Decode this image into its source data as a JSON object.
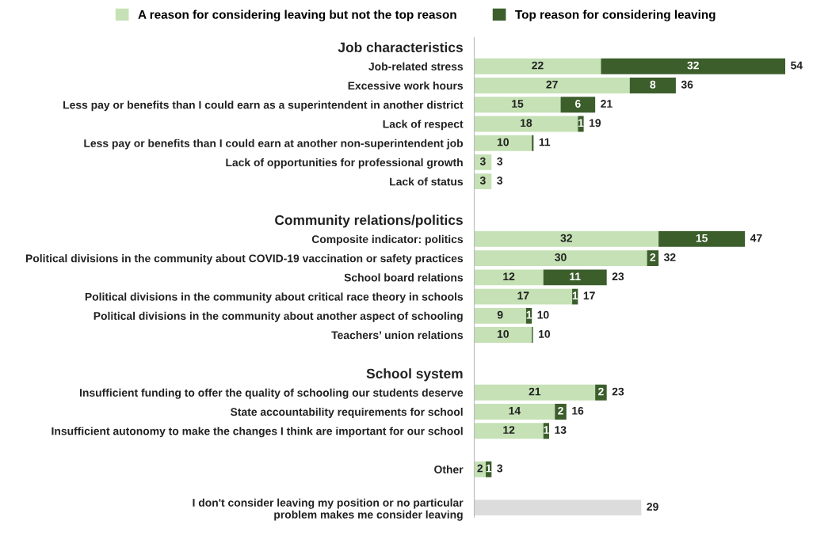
{
  "chart_data": {
    "type": "bar",
    "orientation": "horizontal",
    "stacked": true,
    "legend": "top",
    "tick_labels": "y",
    "categories": [
      "Job characteristics",
      "Job-related stress",
      "Excessive work hours",
      "Less pay or benefits than I could earn as a superintendent in another district",
      "Lack of respect",
      "Less pay or benefits than I could earn at another non-superintendent job",
      "Lack of opportunities for professional growth",
      "Lack of status",
      null,
      "Community relations/politics",
      "Composite indicator: politics",
      "Political divisions in the community about COVID-19 vaccination or safety practices",
      "School board relations",
      "Political divisions in the community about critical race theory in schools",
      "Political divisions in the community about another aspect of schooling",
      "Teachers’ union relations",
      null,
      "School system",
      "Insufficient funding to offer the quality of schooling our students deserve",
      "State accountability requirements for school",
      "Insufficient autonomy to make the changes I think are important for our school",
      null,
      "Other",
      null,
      "I don't consider leaving my position or no particular\nproblem makes me consider leaving"
    ],
    "series": [
      {
        "name": "A reason for considering leaving but not the top reason",
        "color": "#c5e1b5",
        "colors": [
          "#c5e1b5",
          "#c5e1b5",
          "#c5e1b5",
          "#c5e1b5",
          "#c5e1b5",
          "#c5e1b5",
          "#c5e1b5",
          "#c5e1b5",
          "#c5e1b5",
          "#c5e1b5",
          "#c5e1b5",
          "#c5e1b5",
          "#c5e1b5",
          "#c5e1b5",
          "#c5e1b5",
          "#c5e1b5",
          "#c5e1b5",
          "#c5e1b5",
          "#c5e1b5",
          "#c5e1b5",
          "#c5e1b5",
          "#c5e1b5",
          "#c5e1b5",
          "#c5e1b5",
          "#dcdcdc"
        ],
        "values": [
          null,
          22,
          27,
          15,
          18,
          10,
          3,
          3,
          null,
          null,
          32,
          30,
          12,
          17,
          9,
          10,
          null,
          null,
          21,
          14,
          12,
          null,
          2,
          null,
          29
        ],
        "value_labels": [
          null,
          "22",
          "27",
          "15",
          "18",
          "10",
          "3",
          "3",
          null,
          null,
          "32",
          "30",
          "12",
          "17",
          "9",
          "10",
          null,
          null,
          "21",
          "14",
          "12",
          null,
          "2",
          null,
          null
        ]
      },
      {
        "name": "Top reason for considering leaving",
        "color": "#3b5e2b",
        "values": [
          null,
          32,
          8,
          6,
          1,
          0.3,
          null,
          null,
          null,
          null,
          15,
          2,
          11,
          1,
          1,
          0.2,
          null,
          null,
          2,
          2,
          1,
          null,
          1,
          null,
          null
        ],
        "value_labels": [
          null,
          "32",
          "8",
          "6",
          "1",
          null,
          null,
          null,
          null,
          null,
          "15",
          "2",
          "11",
          "1",
          "1",
          null,
          null,
          null,
          "2",
          "2",
          "1",
          null,
          "1",
          null,
          null
        ]
      }
    ],
    "totals": [
      null,
      "54",
      "36",
      "21",
      "19",
      "11",
      "3",
      "3",
      null,
      null,
      "47",
      "32",
      "23",
      "17",
      "10",
      "10",
      null,
      null,
      "23",
      "16",
      "13",
      null,
      "3",
      null,
      "29"
    ]
  }
}
